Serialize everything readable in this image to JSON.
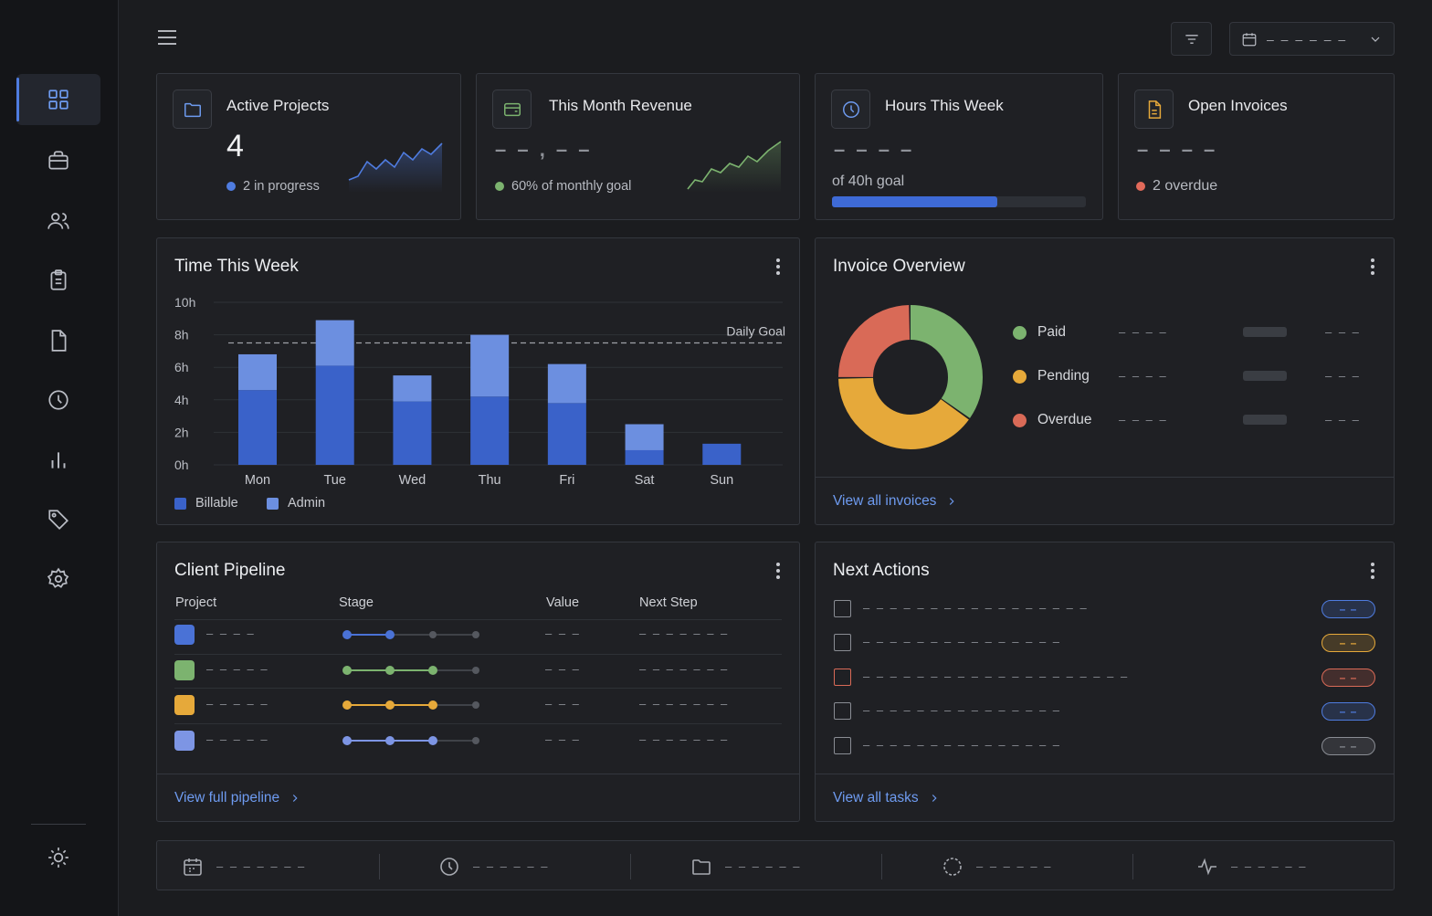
{
  "sidebar": {
    "items": [
      {
        "name": "dashboard",
        "icon": "grid-icon",
        "active": true
      },
      {
        "name": "projects",
        "icon": "briefcase-icon"
      },
      {
        "name": "clients",
        "icon": "users-icon"
      },
      {
        "name": "tasks",
        "icon": "clipboard-icon"
      },
      {
        "name": "documents",
        "icon": "file-icon"
      },
      {
        "name": "time",
        "icon": "clock-icon"
      },
      {
        "name": "reports",
        "icon": "bar-chart-icon"
      },
      {
        "name": "tags",
        "icon": "tag-icon"
      },
      {
        "name": "settings",
        "icon": "gear-icon"
      }
    ],
    "theme_icon": "sun-icon"
  },
  "header": {
    "date_range_value": "– – – – – –"
  },
  "stats": {
    "active_projects": {
      "title": "Active Projects",
      "value": "4",
      "sub": "2 in progress",
      "dot_color": "#4f7ce0"
    },
    "revenue": {
      "title": "This Month Revenue",
      "value": "– – , – –",
      "sub": "60% of monthly goal",
      "dot_color": "#7cb36f"
    },
    "hours": {
      "title": "Hours This Week",
      "value": "– – – –",
      "sub": "of 40h goal",
      "progress": 0.65
    },
    "invoices": {
      "title": "Open Invoices",
      "value": "– – – –",
      "sub": "2 overdue",
      "dot_color": "#e26a5a"
    }
  },
  "time_panel": {
    "title": "Time This Week",
    "goal_label": "Daily Goal",
    "legend": {
      "billable": "Billable",
      "admin": "Admin"
    }
  },
  "chart_data": {
    "type": "bar",
    "stacked": true,
    "categories": [
      "Mon",
      "Tue",
      "Wed",
      "Thu",
      "Fri",
      "Sat",
      "Sun"
    ],
    "series": [
      {
        "name": "Billable",
        "color": "#3a62c9",
        "values": [
          4.6,
          6.1,
          3.9,
          4.2,
          3.8,
          0.9,
          1.3
        ]
      },
      {
        "name": "Admin",
        "color": "#6c8fe0",
        "values": [
          2.2,
          2.8,
          1.6,
          3.8,
          2.4,
          1.6,
          0
        ]
      }
    ],
    "yticks": [
      "0h",
      "2h",
      "4h",
      "6h",
      "8h",
      "10h"
    ],
    "ylim": [
      0,
      10
    ],
    "goal": 7.5
  },
  "invoice_panel": {
    "title": "Invoice Overview",
    "segments": [
      {
        "label": "Paid",
        "value": 35,
        "color": "#7cb36f"
      },
      {
        "label": "Pending",
        "value": 40,
        "color": "#e6a93a"
      },
      {
        "label": "Overdue",
        "value": 25,
        "color": "#d96a57"
      }
    ],
    "placeholder_a": "– – – –",
    "placeholder_b": "– – –",
    "footer_link": "View all invoices"
  },
  "pipeline": {
    "title": "Client Pipeline",
    "headers": {
      "project": "Project",
      "stage": "Stage",
      "value": "Value",
      "next": "Next Step"
    },
    "rows": [
      {
        "color": "#4a72d6",
        "name": "– – – –",
        "stage": 2,
        "value": "– – –",
        "next": "– – – – – – –"
      },
      {
        "color": "#7cb36f",
        "name": "– – – – –",
        "stage": 3,
        "value": "– – –",
        "next": "– – – – – – –"
      },
      {
        "color": "#e6a93a",
        "name": "– – – – –",
        "stage": 3,
        "value": "– – –",
        "next": "– – – – – – –"
      },
      {
        "color": "#7d95e4",
        "name": "– – – – –",
        "stage": 3,
        "value": "– – –",
        "next": "– – – – – – –"
      }
    ],
    "footer_link": "View full pipeline"
  },
  "actions": {
    "title": "Next Actions",
    "items": [
      {
        "text": "– – – – – – – – – – – – – – – – –",
        "pill": "– –",
        "pill_color": "#4f7ce0",
        "check_color": "#8a8d94"
      },
      {
        "text": "– – – – – – – – – – – – – – –",
        "pill": "– –",
        "pill_color": "#e6a93a",
        "check_color": "#8a8d94"
      },
      {
        "text": "– – – – – – – – – – – – – – – – – – – –",
        "pill": "– –",
        "pill_color": "#d96a57",
        "check_color": "#d96a57"
      },
      {
        "text": "– – – – – – – – – – – – – – –",
        "pill": "– –",
        "pill_color": "#4f7ce0",
        "check_color": "#8a8d94"
      },
      {
        "text": "– – – – – – – – – – – – – – –",
        "pill": "– –",
        "pill_color": "#8a8d94",
        "check_color": "#8a8d94"
      }
    ],
    "footer_link": "View all tasks"
  },
  "bottom_bar": [
    {
      "icon": "calendar-icon",
      "text": "– – – – – – –"
    },
    {
      "icon": "clock-icon",
      "text": "– – – – – –"
    },
    {
      "icon": "folder-icon",
      "text": "– – – – – –"
    },
    {
      "icon": "spinner-icon",
      "text": "– – – – – –"
    },
    {
      "icon": "activity-icon",
      "text": "– – – – – –"
    }
  ]
}
